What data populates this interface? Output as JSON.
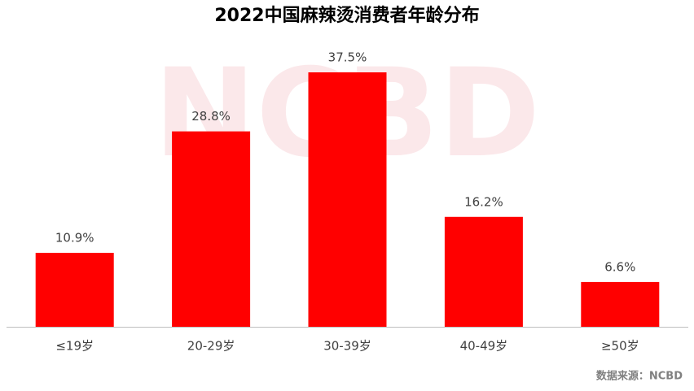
{
  "chart_data": {
    "type": "bar",
    "title": "2022中国麻辣烫消费者年龄分布",
    "categories": [
      "≤19岁",
      "20-29岁",
      "30-39岁",
      "40-49岁",
      "≥50岁"
    ],
    "values": [
      10.9,
      28.8,
      37.5,
      16.2,
      6.6
    ],
    "value_labels": [
      "10.9%",
      "28.8%",
      "37.5%",
      "16.2%",
      "6.6%"
    ],
    "color": "#ff0000",
    "watermark": "NCBD",
    "source": "数据来源：NCBD"
  }
}
